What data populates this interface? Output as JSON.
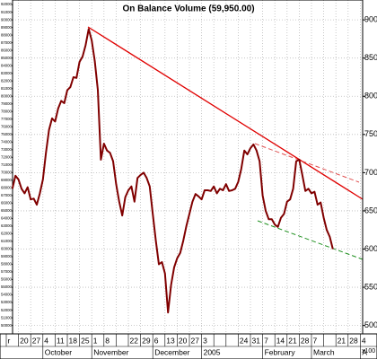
{
  "chart_data": {
    "type": "line",
    "title": "On Balance Volume (59,950.00)",
    "y_unit_label": "x100",
    "ylim": [
      489,
      926
    ],
    "yticks": [
      500,
      550,
      600,
      650,
      700,
      750,
      800,
      850,
      900
    ],
    "yticks_left": [
      {
        "value": 920,
        "label": "92000"
      },
      {
        "value": 910,
        "label": "91000"
      },
      {
        "value": 900,
        "label": "90000"
      },
      {
        "value": 890,
        "label": "89000"
      },
      {
        "value": 880,
        "label": "88000"
      },
      {
        "value": 870,
        "label": "87000"
      },
      {
        "value": 860,
        "label": "86000"
      },
      {
        "value": 850,
        "label": "85000"
      },
      {
        "value": 840,
        "label": "84000"
      },
      {
        "value": 830,
        "label": "83000"
      },
      {
        "value": 820,
        "label": "82000"
      },
      {
        "value": 810,
        "label": "81000"
      },
      {
        "value": 800,
        "label": "80000"
      },
      {
        "value": 790,
        "label": "79000"
      },
      {
        "value": 780,
        "label": "78000"
      },
      {
        "value": 770,
        "label": "77000"
      },
      {
        "value": 760,
        "label": "76000"
      },
      {
        "value": 750,
        "label": "75000"
      },
      {
        "value": 740,
        "label": "74000"
      },
      {
        "value": 730,
        "label": "73000"
      },
      {
        "value": 720,
        "label": "72000"
      },
      {
        "value": 710,
        "label": "71000"
      },
      {
        "value": 700,
        "label": "70000"
      },
      {
        "value": 690,
        "label": "69000"
      },
      {
        "value": 680,
        "label": "68000"
      },
      {
        "value": 670,
        "label": "67000"
      },
      {
        "value": 660,
        "label": "66000"
      },
      {
        "value": 650,
        "label": "65000"
      },
      {
        "value": 640,
        "label": "64000"
      },
      {
        "value": 630,
        "label": "63000"
      },
      {
        "value": 620,
        "label": "62000"
      },
      {
        "value": 610,
        "label": "61000"
      },
      {
        "value": 600,
        "label": "60000"
      },
      {
        "value": 590,
        "label": "59000"
      },
      {
        "value": 580,
        "label": "58000"
      },
      {
        "value": 570,
        "label": "57000"
      },
      {
        "value": 560,
        "label": "56000"
      },
      {
        "value": 550,
        "label": "55000"
      },
      {
        "value": 540,
        "label": "54000"
      },
      {
        "value": 530,
        "label": "53000"
      },
      {
        "value": 520,
        "label": "52000"
      },
      {
        "value": 510,
        "label": "51000"
      },
      {
        "value": 500,
        "label": "50000"
      }
    ],
    "grid": true,
    "categories": [
      "r",
      null,
      null,
      null,
      "20",
      null,
      null,
      null,
      "27",
      null,
      null,
      null,
      "4",
      null,
      null,
      null,
      "11",
      null,
      null,
      null,
      "18",
      null,
      null,
      null,
      "25",
      null,
      null,
      null,
      "1",
      null,
      null,
      null,
      "8",
      null,
      null,
      null,
      null,
      null,
      null,
      null,
      "22",
      null,
      null,
      null,
      "29",
      null,
      null,
      null,
      "6",
      null,
      null,
      null,
      "13",
      null,
      null,
      null,
      "20",
      null,
      null,
      null,
      "27",
      null,
      null,
      null,
      "3",
      null,
      null,
      null,
      null,
      null,
      null,
      null,
      null,
      null,
      null,
      null,
      "24",
      null,
      null,
      null,
      "31",
      null,
      null,
      null,
      "7",
      null,
      null,
      null,
      "14",
      null,
      null,
      null,
      "21",
      null,
      null,
      null,
      "28",
      null,
      null,
      null,
      "7",
      null,
      null,
      null,
      null,
      null,
      null,
      null,
      "21",
      null,
      null,
      null,
      "28",
      null,
      null,
      null,
      "4"
    ],
    "month_labels": [
      null,
      null,
      null,
      null,
      null,
      null,
      null,
      null,
      null,
      null,
      null,
      null,
      "October",
      null,
      null,
      null,
      null,
      null,
      null,
      null,
      null,
      null,
      null,
      null,
      null,
      null,
      null,
      null,
      "November",
      null,
      null,
      null,
      null,
      null,
      null,
      null,
      null,
      null,
      null,
      null,
      null,
      null,
      null,
      null,
      null,
      null,
      null,
      null,
      "December",
      null,
      null,
      null,
      null,
      null,
      null,
      null,
      null,
      null,
      null,
      null,
      null,
      null,
      null,
      null,
      "2005",
      null,
      null,
      null,
      null,
      null,
      null,
      null,
      null,
      null,
      null,
      null,
      null,
      null,
      null,
      null,
      null,
      null,
      null,
      null,
      "February",
      null,
      null,
      null,
      null,
      null,
      null,
      null,
      null,
      null,
      null,
      null,
      null,
      null,
      null,
      null,
      "March",
      null,
      null,
      null,
      null,
      null,
      null,
      null,
      null,
      null,
      null,
      null,
      null,
      null,
      null,
      null,
      "A"
    ],
    "series": [
      {
        "name": "On Balance Volume",
        "color": "#800000",
        "values": [
          null,
          null,
          679,
          696,
          691,
          679,
          673,
          681,
          665,
          666,
          658,
          673,
          691,
          726,
          756,
          771,
          767,
          784,
          794,
          791,
          808,
          812,
          825,
          824,
          845,
          852,
          867,
          888,
          873,
          846,
          808,
          717,
          738,
          729,
          726,
          715,
          685,
          662,
          644,
          668,
          677,
          682,
          662,
          693,
          697,
          700,
          693,
          682,
          646,
          611,
          580,
          583,
          568,
          517,
          553,
          576,
          588,
          595,
          611,
          630,
          646,
          662,
          672,
          669,
          665,
          677,
          677,
          676,
          682,
          673,
          679,
          677,
          685,
          676,
          677,
          679,
          688,
          705,
          729,
          724,
          732,
          737,
          729,
          715,
          670,
          650,
          639,
          639,
          632,
          629,
          641,
          646,
          662,
          665,
          679,
          715,
          717,
          697,
          676,
          679,
          673,
          675,
          658,
          661,
          641,
          625,
          616,
          600,
          null,
          null,
          null,
          null,
          null,
          null,
          null,
          null,
          null
        ]
      }
    ]
  }
}
